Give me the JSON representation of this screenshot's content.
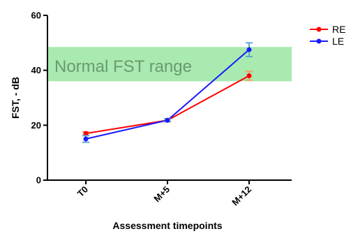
{
  "chart_data": {
    "type": "line",
    "xlabel": "Assessment timepoints",
    "ylabel": "FST, - dB",
    "categories": [
      "T0",
      "M+5",
      "M+12"
    ],
    "ylim": [
      0,
      60
    ],
    "yticks": [
      "0",
      "20",
      "40",
      "60"
    ],
    "grid": false,
    "legend_position": "top-right",
    "band": {
      "label": "Normal FST range",
      "from": 36,
      "to": 48.5,
      "color": "#a8eab0"
    },
    "series": [
      {
        "name": "RE",
        "color": "#ff0000",
        "values": [
          17.0,
          21.8,
          38.0
        ],
        "error": [
          0.6,
          0.5,
          1.6
        ],
        "error_color": "#f4a460"
      },
      {
        "name": "LE",
        "color": "#1a1aff",
        "values": [
          15.0,
          21.8,
          47.5
        ],
        "error": [
          1.2,
          0.5,
          2.5
        ],
        "error_color": "#5fa8d3"
      }
    ]
  }
}
